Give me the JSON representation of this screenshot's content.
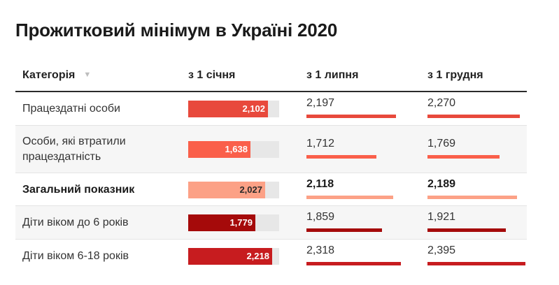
{
  "chart_data": {
    "type": "table",
    "title": "Прожитковий мінімум в Україні 2020",
    "columns": [
      "Категорія",
      "з 1 січня",
      "з 1 липня",
      "з 1 грудня"
    ],
    "scale_max": 2400,
    "rows": [
      {
        "category": "Працездатні особи",
        "values": [
          "2,102",
          "2,197",
          "2,270"
        ],
        "numeric": [
          2102,
          2197,
          2270
        ],
        "color": "#e8493c",
        "label_dark": false,
        "bold": false
      },
      {
        "category": "Особи, які втратили працездатність",
        "values": [
          "1,638",
          "1,712",
          "1,769"
        ],
        "numeric": [
          1638,
          1712,
          1769
        ],
        "color": "#fa5f4a",
        "label_dark": false,
        "bold": false
      },
      {
        "category": "Загальний показник",
        "values": [
          "2,027",
          "2,118",
          "2,189"
        ],
        "numeric": [
          2027,
          2118,
          2189
        ],
        "color": "#fca186",
        "label_dark": true,
        "bold": true
      },
      {
        "category": "Діти віком до 6 років",
        "values": [
          "1,779",
          "1,859",
          "1,921"
        ],
        "numeric": [
          1779,
          1859,
          1921
        ],
        "color": "#a50a0a",
        "label_dark": false,
        "bold": false
      },
      {
        "category": "Діти віком 6-18 років",
        "values": [
          "2,218",
          "2,318",
          "2,395"
        ],
        "numeric": [
          2218,
          2318,
          2395
        ],
        "color": "#c71c1f",
        "label_dark": false,
        "bold": false
      }
    ]
  }
}
